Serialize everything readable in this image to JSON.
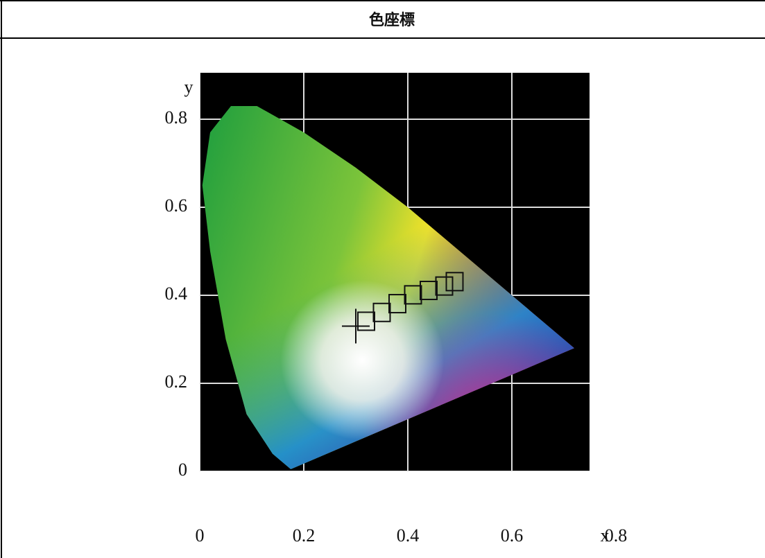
{
  "header": {
    "title": "色座標"
  },
  "figure": {
    "x_axis_label": "x",
    "y_axis_label": "y",
    "xticks": [
      0,
      0.2,
      0.4,
      0.6,
      0.8
    ],
    "yticks": [
      0,
      0.2,
      0.4,
      0.6,
      0.8
    ]
  }
}
